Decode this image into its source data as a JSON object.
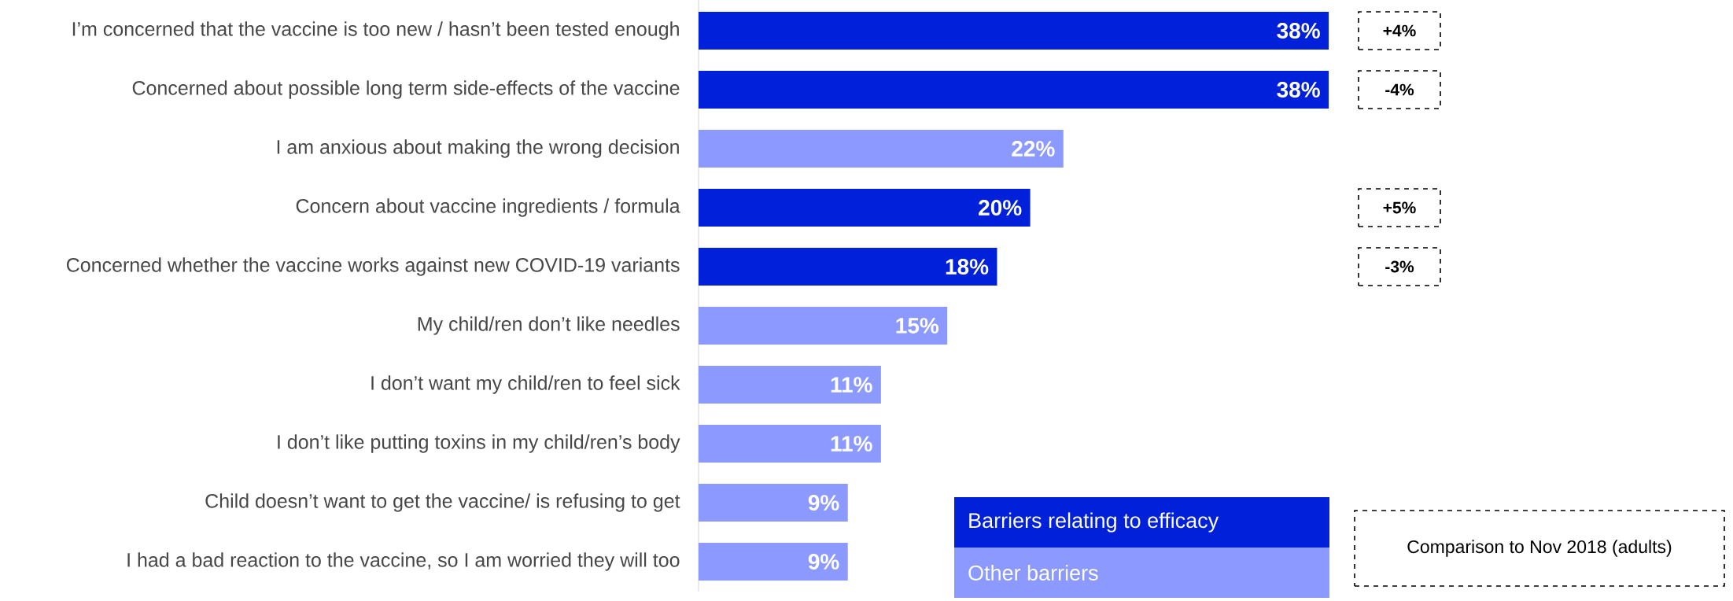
{
  "chart_data": {
    "type": "bar",
    "orientation": "horizontal",
    "categories": [
      "I’m concerned that the vaccine is too new / hasn’t been tested enough",
      "Concerned about possible long term side-effects of the vaccine",
      "I am anxious about making the wrong decision",
      "Concern about vaccine ingredients / formula",
      "Concerned whether the vaccine works against new COVID-19 variants",
      "My child/ren don’t like needles",
      "I don’t want my child/ren to feel sick",
      "I don’t like putting toxins in my child/ren’s body",
      "Child doesn’t want to get the vaccine/ is refusing to get",
      "I had a bad reaction to the vaccine, so I am worried they will too"
    ],
    "series": [
      {
        "name": "Barriers relating to efficacy",
        "color": "#0020d9",
        "values": [
          38,
          38,
          null,
          20,
          18,
          null,
          null,
          null,
          null,
          null
        ],
        "value_labels": [
          "38%",
          "38%",
          null,
          "20%",
          "18%",
          null,
          null,
          null,
          null,
          null
        ]
      },
      {
        "name": "Other barriers",
        "color": "#8c9aff",
        "values": [
          null,
          null,
          22,
          null,
          null,
          15,
          11,
          11,
          9,
          9
        ],
        "value_labels": [
          null,
          null,
          "22%",
          null,
          null,
          "15%",
          "11%",
          "11%",
          "9%",
          "9%"
        ]
      }
    ],
    "legend": "bottom",
    "annotations": [
      "+4%",
      "-4%",
      "+5%",
      "-3%",
      "Comparison to Nov 2018 (adults)"
    ]
  }
}
